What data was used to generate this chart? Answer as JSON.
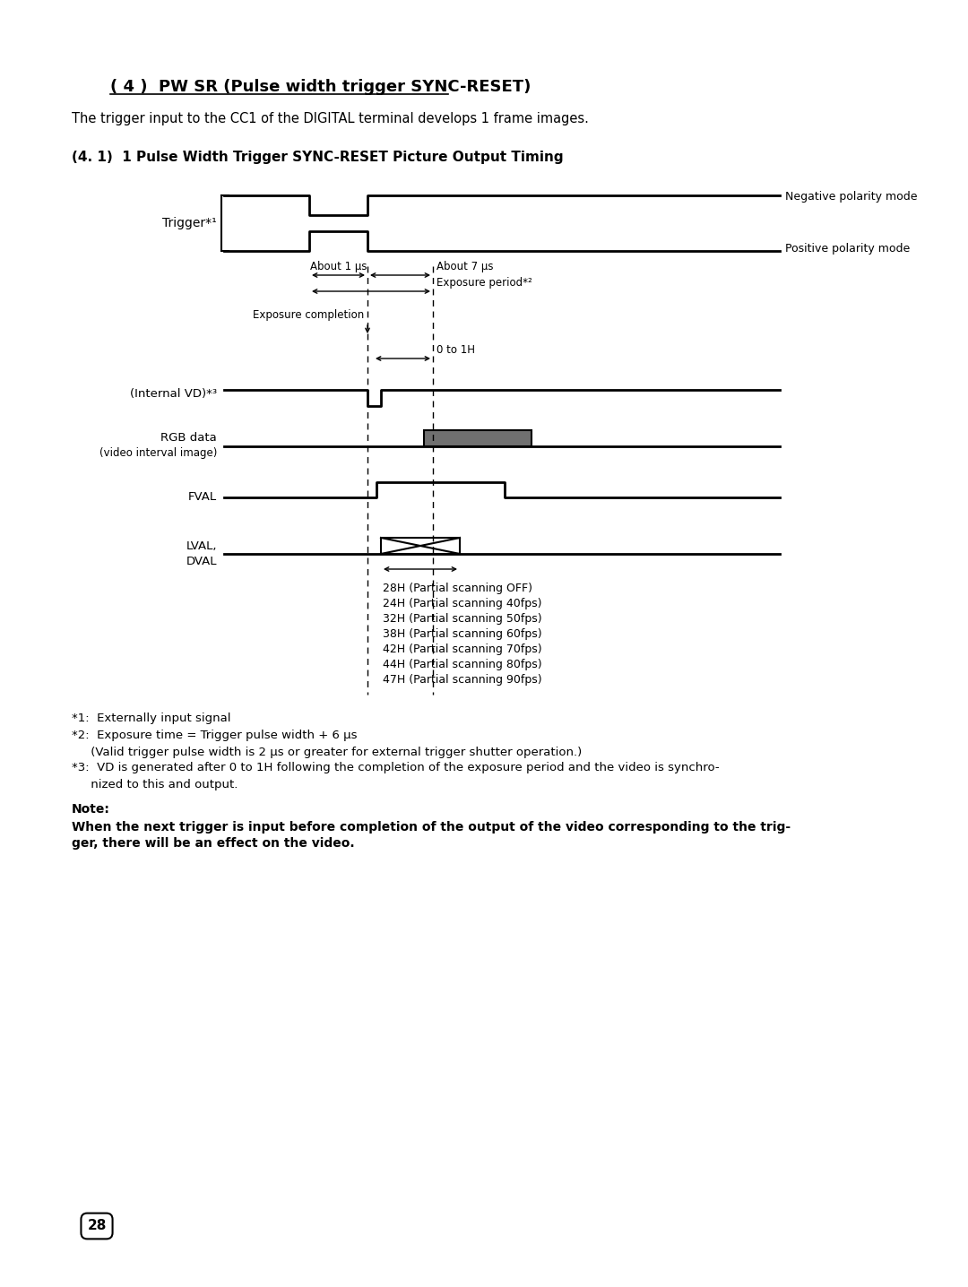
{
  "title": "( 4 )  PW SR (Pulse width trigger SYNC-RESET)",
  "subtitle": "The trigger input to the CC1 of the DIGITAL terminal develops 1 frame images.",
  "section_title": "(4. 1)  1 Pulse Width Trigger SYNC-RESET Picture Output Timing",
  "bg_color": "#ffffff",
  "text_color": "#000000",
  "note_label": "Note:",
  "note_text": "When the next trigger is input before completion of the output of the video corresponding to the trig-\nger, there will be an effect on the video.",
  "page_number": "28",
  "partial_scan_lines": [
    "28H (Partial scanning OFF)",
    "24H (Partial scanning 40fps)",
    "32H (Partial scanning 50fps)",
    "38H (Partial scanning 60fps)",
    "42H (Partial scanning 70fps)",
    "44H (Partial scanning 80fps)",
    "47H (Partial scanning 90fps)"
  ],
  "rgb_fill_color": "#707070"
}
